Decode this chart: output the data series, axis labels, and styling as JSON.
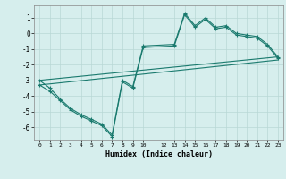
{
  "title": "",
  "xlabel": "Humidex (Indice chaleur)",
  "bg_color": "#d6eeed",
  "line_color": "#1a7a6e",
  "grid_color": "#b8d8d5",
  "xlim": [
    -0.5,
    23.5
  ],
  "ylim": [
    -6.8,
    1.8
  ],
  "xticks": [
    0,
    1,
    2,
    3,
    4,
    5,
    6,
    7,
    8,
    9,
    10,
    12,
    13,
    14,
    15,
    16,
    17,
    18,
    19,
    20,
    21,
    22,
    23
  ],
  "yticks": [
    -6,
    -5,
    -4,
    -3,
    -2,
    -1,
    0,
    1
  ],
  "curve1_x": [
    0,
    1,
    2,
    3,
    4,
    5,
    6,
    7,
    8,
    9,
    10,
    13,
    14,
    15,
    16,
    17,
    18,
    19,
    20,
    21,
    22,
    23
  ],
  "curve1_y": [
    -3.0,
    -3.5,
    -4.2,
    -4.8,
    -5.2,
    -5.5,
    -5.8,
    -6.5,
    -3.0,
    -3.4,
    -0.8,
    -0.7,
    1.3,
    0.5,
    1.0,
    0.4,
    0.5,
    0.0,
    -0.1,
    -0.2,
    -0.7,
    -1.5
  ],
  "curve2_x": [
    0,
    1,
    2,
    3,
    4,
    5,
    6,
    7,
    8,
    9,
    10,
    13,
    14,
    15,
    16,
    17,
    18,
    19,
    20,
    21,
    22,
    23
  ],
  "curve2_y": [
    -3.3,
    -3.7,
    -4.3,
    -4.9,
    -5.3,
    -5.6,
    -5.9,
    -6.6,
    -3.1,
    -3.5,
    -0.9,
    -0.8,
    1.2,
    0.4,
    0.9,
    0.3,
    0.4,
    -0.1,
    -0.2,
    -0.3,
    -0.8,
    -1.6
  ],
  "line3_x": [
    0,
    23
  ],
  "line3_y": [
    -3.0,
    -1.5
  ],
  "line4_x": [
    0,
    23
  ],
  "line4_y": [
    -3.3,
    -1.7
  ]
}
